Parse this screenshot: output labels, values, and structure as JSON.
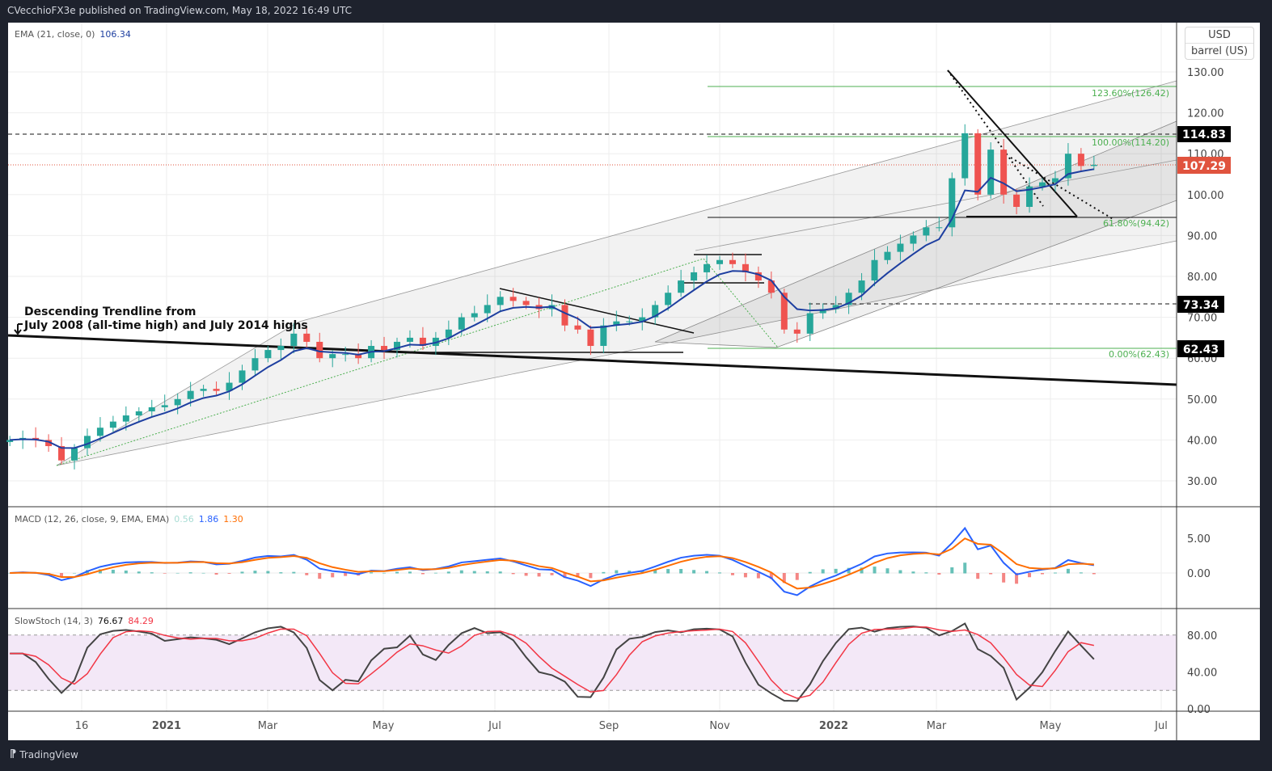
{
  "header": {
    "published": "CVecchioFX3e published on TradingView.com, May 18, 2022 16:49 UTC"
  },
  "footer": {
    "brand": "TradingView"
  },
  "currency": "USD",
  "unit": "barrel (US)",
  "legend": {
    "ema": {
      "label": "EMA (21, close, 0)",
      "value": "106.34",
      "color": "#1e3fa0"
    },
    "macd": {
      "label": "MACD (12, 26, close, 9, EMA, EMA)",
      "hist": "0.56",
      "macd": "1.86",
      "signal": "1.30"
    },
    "stoch": {
      "label": "SlowStoch (14, 3)",
      "k": "76.67",
      "d": "84.29"
    }
  },
  "annotation": {
    "line1": "Descending Trendline from",
    "line2": "July 2008 (all-time high) and July 2014 highs"
  },
  "price_labels": {
    "p114": "114.83",
    "p107": "107.29",
    "p73": "73.34",
    "p62": "62.43"
  },
  "fib": {
    "f1236": "123.60%(126.42)",
    "f100": "100.00%(114.20)",
    "f618": "61.80%(94.42)",
    "f0": "0.00%(62.43)"
  },
  "colors": {
    "up": "#26a69a",
    "down": "#ef5350",
    "ema": "#1e3fa0",
    "macd": "#2962ff",
    "signal": "#ff6d00",
    "fib": "#4caf50",
    "last": "#e0533e"
  },
  "chart_data": {
    "type": "candlestick",
    "ylim": [
      25,
      135
    ],
    "y_ticks": [
      "130.00",
      "120.00",
      "110.00",
      "100.00",
      "90.00",
      "80.00",
      "70.00",
      "60.00",
      "50.00",
      "40.00",
      "30.00"
    ],
    "x_ticks": [
      "16",
      "2021",
      "Mar",
      "May",
      "Jul",
      "Sep",
      "Nov",
      "2022",
      "Mar",
      "May",
      "Jul"
    ],
    "macd_ticks": [
      "5.00",
      "0.00"
    ],
    "stoch_ticks": [
      "80.00",
      "40.00",
      "0.00"
    ],
    "weekly_closes": [
      [
        "2020-10-05",
        40
      ],
      [
        "2020-10-12",
        40.5
      ],
      [
        "2020-10-19",
        40
      ],
      [
        "2020-10-26",
        38.5
      ],
      [
        "2020-11-02",
        35
      ],
      [
        "2020-11-09",
        38
      ],
      [
        "2020-11-16",
        41
      ],
      [
        "2020-11-23",
        43
      ],
      [
        "2020-11-30",
        44.5
      ],
      [
        "2020-12-07",
        46
      ],
      [
        "2020-12-14",
        47
      ],
      [
        "2020-12-21",
        48
      ],
      [
        "2020-12-28",
        48.5
      ],
      [
        "2021-01-04",
        50
      ],
      [
        "2021-01-11",
        52
      ],
      [
        "2021-01-18",
        52.5
      ],
      [
        "2021-01-25",
        52
      ],
      [
        "2021-02-01",
        54
      ],
      [
        "2021-02-08",
        57
      ],
      [
        "2021-02-15",
        60
      ],
      [
        "2021-02-22",
        62
      ],
      [
        "2021-03-01",
        63
      ],
      [
        "2021-03-08",
        66
      ],
      [
        "2021-03-15",
        64
      ],
      [
        "2021-03-22",
        60
      ],
      [
        "2021-03-29",
        61
      ],
      [
        "2021-04-05",
        61
      ],
      [
        "2021-04-12",
        60
      ],
      [
        "2021-04-19",
        63
      ],
      [
        "2021-04-26",
        62
      ],
      [
        "2021-05-03",
        64
      ],
      [
        "2021-05-10",
        65
      ],
      [
        "2021-05-17",
        63
      ],
      [
        "2021-05-24",
        65
      ],
      [
        "2021-05-31",
        67
      ],
      [
        "2021-06-07",
        70
      ],
      [
        "2021-06-14",
        71
      ],
      [
        "2021-06-21",
        73
      ],
      [
        "2021-06-28",
        75
      ],
      [
        "2021-07-05",
        74
      ],
      [
        "2021-07-12",
        73
      ],
      [
        "2021-07-19",
        72
      ],
      [
        "2021-07-26",
        73
      ],
      [
        "2021-08-02",
        68
      ],
      [
        "2021-08-09",
        67
      ],
      [
        "2021-08-16",
        63
      ],
      [
        "2021-08-23",
        68
      ],
      [
        "2021-08-30",
        69
      ],
      [
        "2021-09-06",
        69
      ],
      [
        "2021-09-13",
        70
      ],
      [
        "2021-09-20",
        73
      ],
      [
        "2021-09-27",
        76
      ],
      [
        "2021-10-04",
        79
      ],
      [
        "2021-10-11",
        81
      ],
      [
        "2021-10-18",
        83
      ],
      [
        "2021-10-25",
        84
      ],
      [
        "2021-11-01",
        83
      ],
      [
        "2021-11-08",
        81
      ],
      [
        "2021-11-15",
        79
      ],
      [
        "2021-11-22",
        76
      ],
      [
        "2021-11-29",
        67
      ],
      [
        "2021-12-06",
        66
      ],
      [
        "2021-12-13",
        71
      ],
      [
        "2021-12-20",
        72
      ],
      [
        "2021-12-27",
        73
      ],
      [
        "2022-01-03",
        76
      ],
      [
        "2022-01-10",
        79
      ],
      [
        "2022-01-17",
        84
      ],
      [
        "2022-01-24",
        86
      ],
      [
        "2022-01-31",
        88
      ],
      [
        "2022-02-07",
        90
      ],
      [
        "2022-02-14",
        92
      ],
      [
        "2022-02-21",
        92
      ],
      [
        "2022-02-28",
        104
      ],
      [
        "2022-03-07",
        115
      ],
      [
        "2022-03-14",
        100
      ],
      [
        "2022-03-21",
        111
      ],
      [
        "2022-03-28",
        100
      ],
      [
        "2022-04-04",
        97
      ],
      [
        "2022-04-11",
        102
      ],
      [
        "2022-04-18",
        103
      ],
      [
        "2022-04-25",
        104
      ],
      [
        "2022-05-02",
        110
      ],
      [
        "2022-05-09",
        107
      ],
      [
        "2022-05-16",
        107.29
      ]
    ]
  }
}
